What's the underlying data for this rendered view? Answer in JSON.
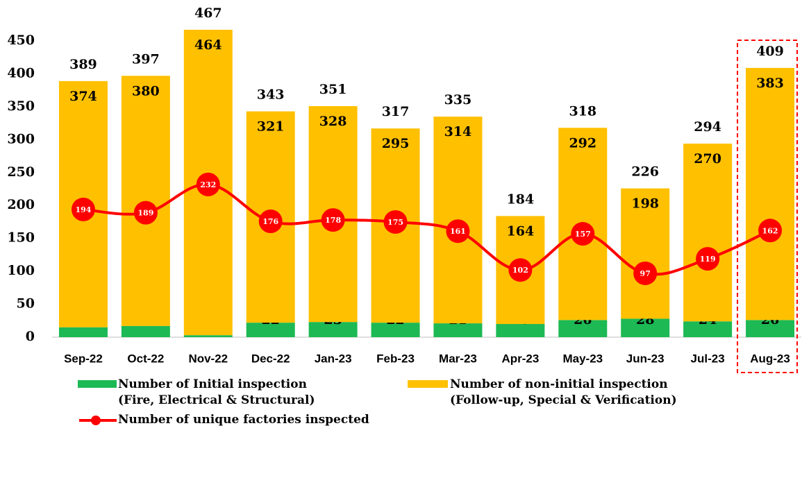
{
  "chart_data": {
    "type": "bar-line",
    "categories": [
      "Sep-22",
      "Oct-22",
      "Nov-22",
      "Dec-22",
      "Jan-23",
      "Feb-23",
      "Mar-23",
      "Apr-23",
      "May-23",
      "Jun-23",
      "Jul-23",
      "Aug-23"
    ],
    "series": [
      {
        "name": "Number of Initial inspection\n(Fire, Electrical & Structural)",
        "color": "#1db954",
        "type": "bar",
        "values": [
          15,
          17,
          3,
          22,
          23,
          22,
          21,
          20,
          26,
          28,
          24,
          26
        ]
      },
      {
        "name": "Number of non-initial inspection\n(Follow-up, Special & Verification)",
        "color": "#ffc000",
        "type": "bar",
        "values": [
          374,
          380,
          464,
          321,
          328,
          295,
          314,
          164,
          292,
          198,
          270,
          383
        ]
      },
      {
        "name": "Number of unique factories inspected",
        "color": "#ff0000",
        "type": "line",
        "values": [
          194,
          189,
          232,
          176,
          178,
          175,
          161,
          102,
          157,
          97,
          119,
          162
        ]
      }
    ],
    "totals": [
      389,
      397,
      467,
      343,
      351,
      317,
      335,
      184,
      318,
      226,
      294,
      409
    ],
    "ylim": [
      0,
      450
    ],
    "yticks": [
      0,
      50,
      100,
      150,
      200,
      250,
      300,
      350,
      400,
      450
    ]
  }
}
